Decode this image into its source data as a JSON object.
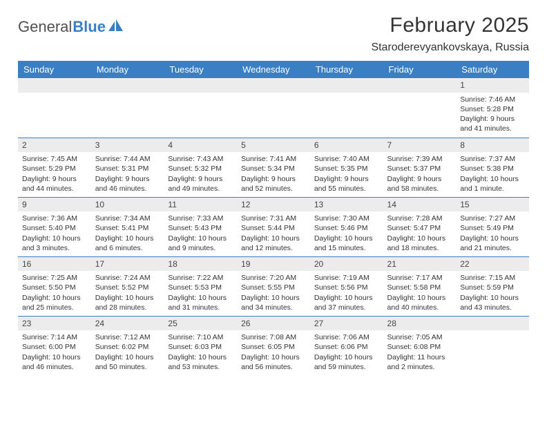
{
  "logo": {
    "text1": "General",
    "text2": "Blue"
  },
  "title": "February 2025",
  "location": "Staroderevyankovskaya, Russia",
  "colors": {
    "header_bg": "#3a7fc4",
    "header_text": "#ffffff",
    "daynum_bg": "#ececec",
    "border": "#3a7fc4",
    "text": "#333333"
  },
  "daysOfWeek": [
    "Sunday",
    "Monday",
    "Tuesday",
    "Wednesday",
    "Thursday",
    "Friday",
    "Saturday"
  ],
  "firstWeekday": 6,
  "daysInMonth": 28,
  "days": {
    "1": {
      "sunrise": "7:46 AM",
      "sunset": "5:28 PM",
      "daylight": "9 hours and 41 minutes."
    },
    "2": {
      "sunrise": "7:45 AM",
      "sunset": "5:29 PM",
      "daylight": "9 hours and 44 minutes."
    },
    "3": {
      "sunrise": "7:44 AM",
      "sunset": "5:31 PM",
      "daylight": "9 hours and 46 minutes."
    },
    "4": {
      "sunrise": "7:43 AM",
      "sunset": "5:32 PM",
      "daylight": "9 hours and 49 minutes."
    },
    "5": {
      "sunrise": "7:41 AM",
      "sunset": "5:34 PM",
      "daylight": "9 hours and 52 minutes."
    },
    "6": {
      "sunrise": "7:40 AM",
      "sunset": "5:35 PM",
      "daylight": "9 hours and 55 minutes."
    },
    "7": {
      "sunrise": "7:39 AM",
      "sunset": "5:37 PM",
      "daylight": "9 hours and 58 minutes."
    },
    "8": {
      "sunrise": "7:37 AM",
      "sunset": "5:38 PM",
      "daylight": "10 hours and 1 minute."
    },
    "9": {
      "sunrise": "7:36 AM",
      "sunset": "5:40 PM",
      "daylight": "10 hours and 3 minutes."
    },
    "10": {
      "sunrise": "7:34 AM",
      "sunset": "5:41 PM",
      "daylight": "10 hours and 6 minutes."
    },
    "11": {
      "sunrise": "7:33 AM",
      "sunset": "5:43 PM",
      "daylight": "10 hours and 9 minutes."
    },
    "12": {
      "sunrise": "7:31 AM",
      "sunset": "5:44 PM",
      "daylight": "10 hours and 12 minutes."
    },
    "13": {
      "sunrise": "7:30 AM",
      "sunset": "5:46 PM",
      "daylight": "10 hours and 15 minutes."
    },
    "14": {
      "sunrise": "7:28 AM",
      "sunset": "5:47 PM",
      "daylight": "10 hours and 18 minutes."
    },
    "15": {
      "sunrise": "7:27 AM",
      "sunset": "5:49 PM",
      "daylight": "10 hours and 21 minutes."
    },
    "16": {
      "sunrise": "7:25 AM",
      "sunset": "5:50 PM",
      "daylight": "10 hours and 25 minutes."
    },
    "17": {
      "sunrise": "7:24 AM",
      "sunset": "5:52 PM",
      "daylight": "10 hours and 28 minutes."
    },
    "18": {
      "sunrise": "7:22 AM",
      "sunset": "5:53 PM",
      "daylight": "10 hours and 31 minutes."
    },
    "19": {
      "sunrise": "7:20 AM",
      "sunset": "5:55 PM",
      "daylight": "10 hours and 34 minutes."
    },
    "20": {
      "sunrise": "7:19 AM",
      "sunset": "5:56 PM",
      "daylight": "10 hours and 37 minutes."
    },
    "21": {
      "sunrise": "7:17 AM",
      "sunset": "5:58 PM",
      "daylight": "10 hours and 40 minutes."
    },
    "22": {
      "sunrise": "7:15 AM",
      "sunset": "5:59 PM",
      "daylight": "10 hours and 43 minutes."
    },
    "23": {
      "sunrise": "7:14 AM",
      "sunset": "6:00 PM",
      "daylight": "10 hours and 46 minutes."
    },
    "24": {
      "sunrise": "7:12 AM",
      "sunset": "6:02 PM",
      "daylight": "10 hours and 50 minutes."
    },
    "25": {
      "sunrise": "7:10 AM",
      "sunset": "6:03 PM",
      "daylight": "10 hours and 53 minutes."
    },
    "26": {
      "sunrise": "7:08 AM",
      "sunset": "6:05 PM",
      "daylight": "10 hours and 56 minutes."
    },
    "27": {
      "sunrise": "7:06 AM",
      "sunset": "6:06 PM",
      "daylight": "10 hours and 59 minutes."
    },
    "28": {
      "sunrise": "7:05 AM",
      "sunset": "6:08 PM",
      "daylight": "11 hours and 2 minutes."
    }
  },
  "labels": {
    "sunrise": "Sunrise:",
    "sunset": "Sunset:",
    "daylight": "Daylight:"
  }
}
